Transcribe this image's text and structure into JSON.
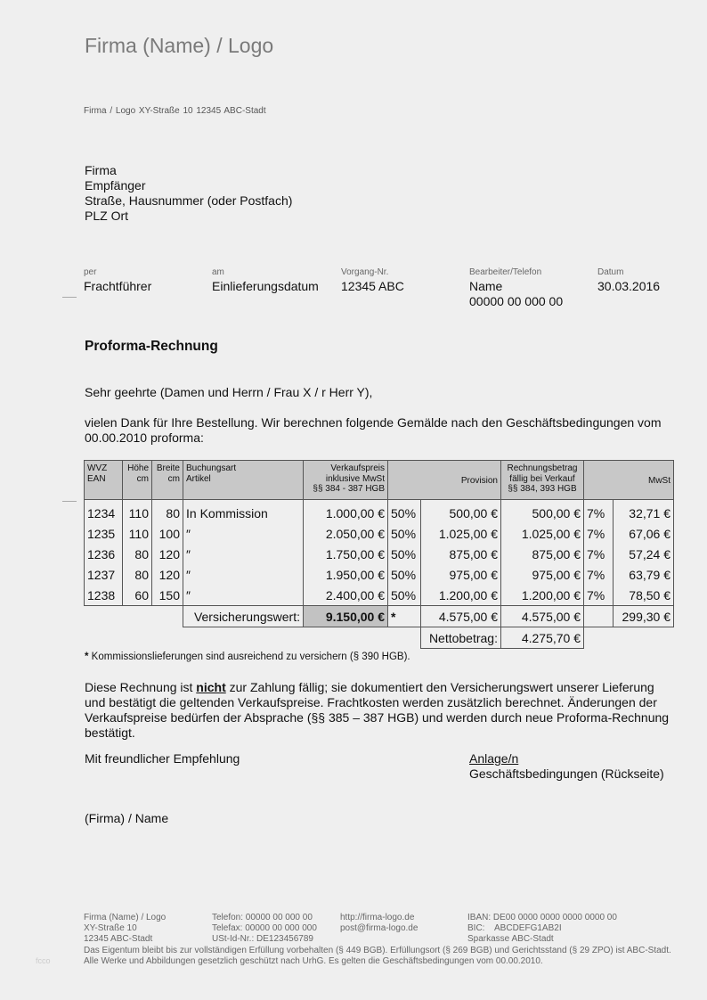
{
  "header": {
    "logo": "Firma (Name) / Logo",
    "sender_line": "Firma / Logo   XY-Straße 10   12345 ABC-Stadt"
  },
  "recipient": [
    "Firma",
    "Empfänger",
    "Straße, Hausnummer (oder Postfach)",
    "PLZ Ort"
  ],
  "meta": [
    {
      "label": "per",
      "value": "Frachtführer"
    },
    {
      "label": "am",
      "value": "Einlieferungsdatum"
    },
    {
      "label": "Vorgang-Nr.",
      "value": "12345 ABC"
    },
    {
      "label": "Bearbeiter/Telefon",
      "value": "Name",
      "value2": "00000 00 000 00"
    },
    {
      "label": "Datum",
      "value": "30.03.2016"
    }
  ],
  "title": "Proforma-Rechnung",
  "salutation": "Sehr geehrte (Damen und Herrn / Frau X / r Herr Y),",
  "intro": "vielen Dank für Ihre Bestellung. Wir berechnen folgende Gemälde nach den Geschäftsbedingungen vom 00.00.2010 proforma:",
  "table": {
    "headers": {
      "wvz": "WVZ",
      "ean": "EAN",
      "hoehe": "Höhe",
      "hoehe_unit": "cm",
      "breite": "Breite",
      "breite_unit": "cm",
      "buchungsart": "Buchungsart",
      "artikel": "Artikel",
      "vk1": "Verkaufspreis",
      "vk2": "inklusive MwSt",
      "vk3": "§§ 384 - 387 HGB",
      "provision": "Provision",
      "rb1": "Rechnungsbetrag",
      "rb2": "fällig bei Verkauf",
      "rb3": "§§ 384, 393 HGB",
      "mwst": "MwSt"
    },
    "rows": [
      {
        "wvz": "1234",
        "h": "110",
        "b": "80",
        "art": "In Kommission",
        "vk": "1.000,00 €",
        "pp": "50%",
        "prov": "500,00 €",
        "rb": "500,00 €",
        "mp": "7%",
        "mwst": "32,71 €"
      },
      {
        "wvz": "1235",
        "h": "110",
        "b": "100",
        "art": "″",
        "vk": "2.050,00 €",
        "pp": "50%",
        "prov": "1.025,00 €",
        "rb": "1.025,00 €",
        "mp": "7%",
        "mwst": "67,06 €"
      },
      {
        "wvz": "1236",
        "h": "80",
        "b": "120",
        "art": "″",
        "vk": "1.750,00 €",
        "pp": "50%",
        "prov": "875,00 €",
        "rb": "875,00 €",
        "mp": "7%",
        "mwst": "57,24 €"
      },
      {
        "wvz": "1237",
        "h": "80",
        "b": "120",
        "art": "″",
        "vk": "1.950,00 €",
        "pp": "50%",
        "prov": "975,00 €",
        "rb": "975,00 €",
        "mp": "7%",
        "mwst": "63,79 €"
      },
      {
        "wvz": "1238",
        "h": "60",
        "b": "150",
        "art": "″",
        "vk": "2.400,00 €",
        "pp": "50%",
        "prov": "1.200,00 €",
        "rb": "1.200,00 €",
        "mp": "7%",
        "mwst": "78,50 €"
      }
    ],
    "totals": {
      "label": "Versicherungswert:",
      "vk": "9.150,00 €",
      "star": "*",
      "prov": "4.575,00 €",
      "rb": "4.575,00 €",
      "mwst": "299,30 €"
    },
    "netto": {
      "label": "Nettobetrag:",
      "value": "4.275,70 €"
    }
  },
  "footnote_star": "*",
  "footnote": " Kommissionslieferungen sind ausreichend zu versichern (§ 390 HGB).",
  "body": {
    "p1a": "Diese Rechnung ist ",
    "p1b": "nicht",
    "p1c": " zur Zahlung fällig; sie dokumentiert den Versicherungswert unserer Lieferung und bestätigt die geltenden Verkaufspreise. Frachtkosten werden zusätzlich berechnet. Änderungen der Verkaufspreise bedürfen der Absprache (§§ 385 – 387 HGB) und werden durch neue Proforma-Rechnung bestätigt."
  },
  "closing": "Mit freundlicher Empfehlung",
  "attachments_label": "Anlage/n",
  "attachments": "Geschäftsbedingungen (Rückseite)",
  "signature": "(Firma) / Name",
  "footer": {
    "col1": [
      "Firma (Name) / Logo",
      "XY-Straße 10",
      "12345 ABC-Stadt"
    ],
    "col2": [
      "Telefon: 00000 00 000 00",
      "Telefax: 00000 00 000 000",
      "USt-Id-Nr.: DE123456789"
    ],
    "col3": [
      "http://firma-logo.de",
      "post@firma-logo.de"
    ],
    "col4": [
      "IBAN: DE00 0000 0000 0000 0000 00",
      "BIC:    ABCDEFG1AB2I",
      "Sparkasse ABC-Stadt"
    ],
    "legal": "Das Eigentum bleibt bis zur vollständigen Erfüllung vorbehalten (§ 449 BGB). Erfüllungsort (§ 269 BGB) und Gerichtsstand (§ 29 ZPO) ist ABC-Stadt. Alle Werke und Abbildungen gesetzlich geschützt nach UrhG. Es gelten die Geschäftsbedingungen vom 00.00.2010.",
    "side": "fcco"
  }
}
